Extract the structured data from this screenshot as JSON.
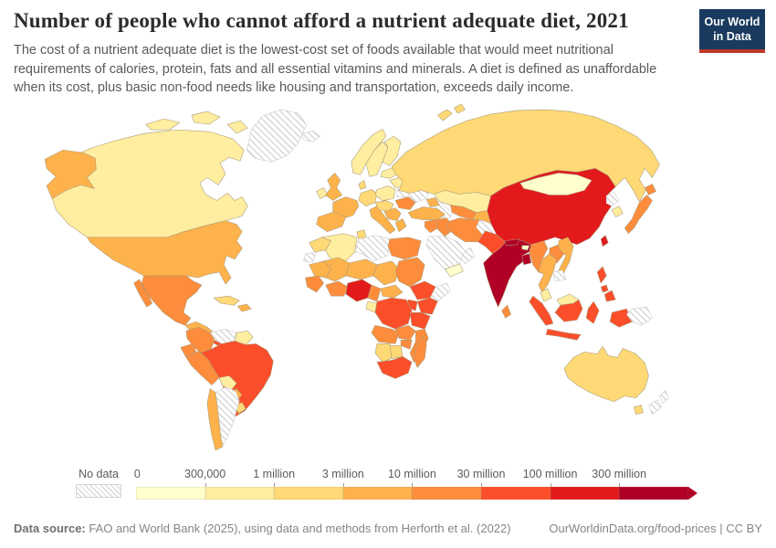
{
  "header": {
    "title": "Number of people who cannot afford a nutrient adequate diet, 2021",
    "subtitle": "The cost of a nutrient adequate diet is the lowest-cost set of foods available that would meet nutritional requirements of calories, protein, fats and all essential vitamins and minerals. A diet is defined as unaffordable when its cost, plus basic non-food needs like housing and transportation, exceeds daily income.",
    "logo": {
      "line1": "Our World",
      "line2": "in Data",
      "bg_color": "#1a3a5f",
      "accent_color": "#c0392b"
    }
  },
  "legend": {
    "no_data_label": "No data",
    "ticks": [
      "0",
      "300,000",
      "1 million",
      "3 million",
      "10 million",
      "30 million",
      "100 million",
      "300 million"
    ]
  },
  "chart_data": {
    "type": "heatmap",
    "subtype": "choropleth-world-map",
    "title": "Number of people who cannot afford a nutrient adequate diet, 2021",
    "year": "2021",
    "legend_position": "bottom",
    "no_data_style": "diagonal-hatch",
    "bins": [
      {
        "label": "0 – 300,000",
        "color": "#FFFFCC"
      },
      {
        "label": "300,000 – 1 million",
        "color": "#FFEDA0"
      },
      {
        "label": "1 – 3 million",
        "color": "#FED976"
      },
      {
        "label": "3 – 10 million",
        "color": "#FEB24C"
      },
      {
        "label": "10 – 30 million",
        "color": "#FD8D3C"
      },
      {
        "label": "30 – 100 million",
        "color": "#FC4E2A"
      },
      {
        "label": "100 – 300 million",
        "color": "#E31A1C"
      },
      {
        "label": "300 million +",
        "color": "#B10026"
      }
    ],
    "countries": {
      "greenland": "no-data",
      "canada": 1,
      "united-states": 3,
      "mexico": 4,
      "central-america": 3,
      "costa-rica-panama": 5,
      "cuba": 2,
      "hispaniola": 3,
      "colombia": 4,
      "venezuela": "no-data",
      "guyanas": 1,
      "ecuador": 4,
      "peru": 4,
      "brazil": 5,
      "bolivia": 1,
      "paraguay": 3,
      "uruguay": 2,
      "chile": 3,
      "argentina": "no-data",
      "iceland": "no-data",
      "ireland": 1,
      "united-kingdom": 3,
      "norway": 1,
      "sweden": 1,
      "finland": 1,
      "denmark": 2,
      "germany": 2,
      "poland": 1,
      "belarus": 1,
      "baltics": 1,
      "france": 3,
      "iberia": 3,
      "italy": 3,
      "central-europe": 2,
      "romania": 4,
      "ukraine": "no-data",
      "balkans": 3,
      "greece": 3,
      "russia": 2,
      "kazakhstan": 1,
      "uzbekistan": 4,
      "turkmenistan": "no-data",
      "kyrgyzstan-tajikistan": 3,
      "caucasus": 3,
      "turkey": 3,
      "syria-levant": 4,
      "iraq": 4,
      "saudi-arabia": "no-data",
      "yemen": 0,
      "oman": "no-data",
      "iran": 4,
      "afghanistan": "no-data",
      "pakistan": 5,
      "india": 7,
      "nepal": 7,
      "bhutan": 0,
      "bangladesh": 7,
      "sri-lanka": 4,
      "myanmar": 4,
      "thailand": 3,
      "laos": 4,
      "vietnam": 3,
      "cambodia": "no-data",
      "malaysia": 1,
      "indonesia": 5,
      "philippines": 5,
      "china": 6,
      "mongolia": 0,
      "taiwan": 6,
      "japan": 4,
      "south-korea": 1,
      "north-korea": "no-data",
      "papua-new-guinea": "no-data",
      "morocco": 2,
      "western-sahara": "no-data",
      "algeria": 1,
      "tunisia": 2,
      "libya": "no-data",
      "egypt": 4,
      "mauritania": 3,
      "mali": 3,
      "niger": 3,
      "chad": 3,
      "sudan": 4,
      "senegal-guinea": 4,
      "ivory-coast-ghana": 4,
      "nigeria": 6,
      "cameroon": 4,
      "central-african-republic": 3,
      "gabon": 1,
      "ethiopia": 5,
      "somalia": "no-data",
      "kenya": 5,
      "uganda": 5,
      "dr-congo": 5,
      "tanzania": 5,
      "angola": 4,
      "zambia": 4,
      "zimbabwe": 4,
      "mozambique": 4,
      "madagascar": 4,
      "namibia": 2,
      "botswana": 2,
      "south-africa": 5,
      "australia": 2,
      "new-zealand": "no-data"
    }
  },
  "footer": {
    "source_label": "Data source:",
    "source_text": " FAO and World Bank (2025), using data and methods from Herforth et al. (2022)",
    "link_text": "OurWorldinData.org/food-prices | CC BY"
  }
}
